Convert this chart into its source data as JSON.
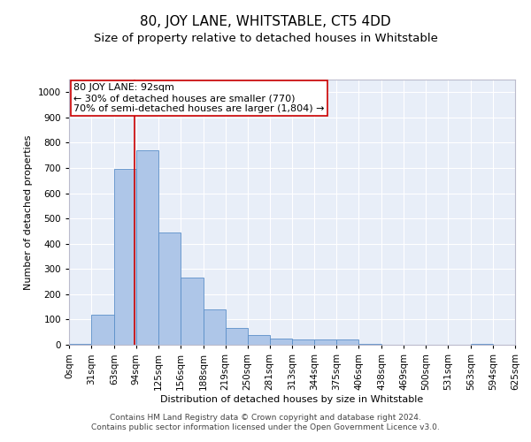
{
  "title": "80, JOY LANE, WHITSTABLE, CT5 4DD",
  "subtitle": "Size of property relative to detached houses in Whitstable",
  "xlabel": "Distribution of detached houses by size in Whitstable",
  "ylabel": "Number of detached properties",
  "footer_line1": "Contains HM Land Registry data © Crown copyright and database right 2024.",
  "footer_line2": "Contains public sector information licensed under the Open Government Licence v3.0.",
  "annotation_line1": "80 JOY LANE: 92sqm",
  "annotation_line2": "← 30% of detached houses are smaller (770)",
  "annotation_line3": "70% of semi-detached houses are larger (1,804) →",
  "bar_color": "#aec6e8",
  "bar_edge_color": "#5b8fc9",
  "ref_line_color": "#cc0000",
  "ref_line_x": 92,
  "bin_edges": [
    0,
    31,
    63,
    94,
    125,
    156,
    188,
    219,
    250,
    281,
    313,
    344,
    375,
    406,
    438,
    469,
    500,
    531,
    563,
    594,
    625
  ],
  "bar_heights": [
    5,
    120,
    695,
    770,
    445,
    265,
    140,
    65,
    40,
    25,
    20,
    20,
    20,
    5,
    0,
    0,
    0,
    0,
    5,
    0
  ],
  "ylim": [
    0,
    1050
  ],
  "yticks": [
    0,
    100,
    200,
    300,
    400,
    500,
    600,
    700,
    800,
    900,
    1000
  ],
  "background_color": "#e8eef8",
  "grid_color": "#ffffff",
  "title_fontsize": 11,
  "subtitle_fontsize": 9.5,
  "axis_label_fontsize": 8,
  "tick_fontsize": 7.5,
  "annotation_fontsize": 8,
  "footer_fontsize": 6.5
}
